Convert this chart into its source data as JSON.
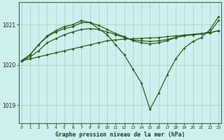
{
  "xlabel": "Graphe pression niveau de la mer (hPa)",
  "background_color": "#cdf0ee",
  "line_color": "#2d5a1e",
  "ylim": [
    1018.55,
    1021.55
  ],
  "yticks": [
    1019,
    1020,
    1021
  ],
  "hours": [
    0,
    1,
    2,
    3,
    4,
    5,
    6,
    7,
    8,
    9,
    10,
    11,
    12,
    13,
    14,
    15,
    16,
    17,
    18,
    19,
    20,
    21,
    22,
    23
  ],
  "series1": [
    1020.1,
    1020.15,
    1020.2,
    1020.25,
    1020.3,
    1020.35,
    1020.4,
    1020.45,
    1020.5,
    1020.55,
    1020.6,
    1020.62,
    1020.64,
    1020.65,
    1020.66,
    1020.67,
    1020.68,
    1020.7,
    1020.72,
    1020.74,
    1020.76,
    1020.78,
    1020.8,
    1020.85
  ],
  "series2": [
    1020.1,
    1020.2,
    1020.35,
    1020.55,
    1020.65,
    1020.75,
    1020.82,
    1020.88,
    1020.9,
    1020.88,
    1020.82,
    1020.75,
    1020.68,
    1020.62,
    1020.6,
    1020.58,
    1020.6,
    1020.63,
    1020.68,
    1020.72,
    1020.75,
    1020.77,
    1020.8,
    1020.85
  ],
  "series3": [
    1020.1,
    1020.25,
    1020.5,
    1020.7,
    1020.82,
    1020.9,
    1020.95,
    1021.05,
    1021.05,
    1020.98,
    1020.88,
    1020.78,
    1020.7,
    1020.6,
    1020.55,
    1020.52,
    1020.55,
    1020.6,
    1020.68,
    1020.73,
    1020.75,
    1020.77,
    1020.82,
    1021.1
  ],
  "series4": [
    1020.1,
    1020.25,
    1020.5,
    1020.72,
    1020.85,
    1020.95,
    1021.0,
    1021.1,
    1021.05,
    1020.9,
    1020.75,
    1020.5,
    1020.25,
    1019.9,
    1019.55,
    1018.9,
    1019.3,
    1019.75,
    1020.15,
    1020.42,
    1020.58,
    1020.68,
    1020.88,
    1021.2
  ]
}
